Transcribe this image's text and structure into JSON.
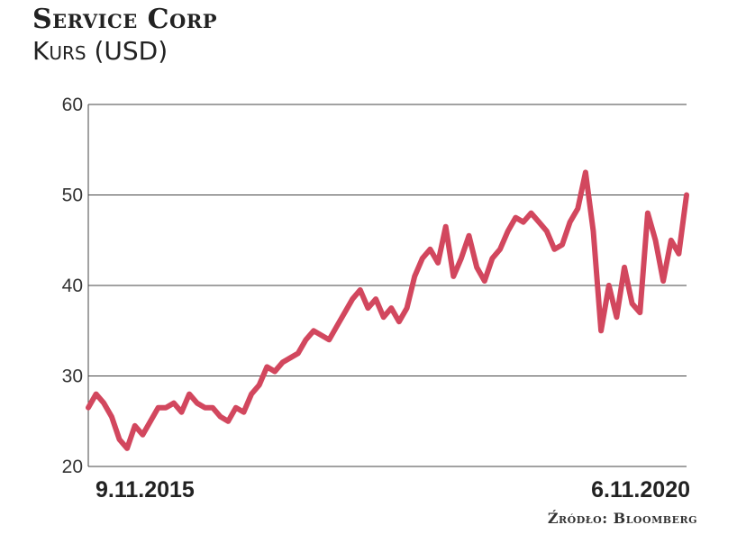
{
  "header": {
    "title": "Service Corp",
    "subtitle": "Kurs (USD)"
  },
  "footer": {
    "source": "Źródło: Bloomberg"
  },
  "chart_data": {
    "type": "line",
    "title": "Service Corp",
    "ylabel": "Kurs (USD)",
    "ylim": [
      20,
      60
    ],
    "yticks": [
      "20",
      "30",
      "40",
      "50",
      "60"
    ],
    "xtick_labels": [
      "9.11.2015",
      "6.11.2020"
    ],
    "grid": "horizontal",
    "line_color": "#d2475e",
    "series": [
      {
        "values": [
          26.5,
          28.0,
          27.0,
          25.5,
          23.0,
          22.0,
          24.5,
          23.5,
          25.0,
          26.5,
          26.5,
          27.0,
          26.0,
          28.0,
          27.0,
          26.5,
          26.5,
          25.5,
          25.0,
          26.5,
          26.0,
          28.0,
          29.0,
          31.0,
          30.5,
          31.5,
          32.0,
          32.5,
          34.0,
          35.0,
          34.5,
          34.0,
          35.5,
          37.0,
          38.5,
          39.5,
          37.5,
          38.5,
          36.5,
          37.5,
          36.0,
          37.5,
          41.0,
          43.0,
          44.0,
          42.5,
          46.5,
          41.0,
          43.0,
          45.5,
          42.0,
          40.5,
          43.0,
          44.0,
          46.0,
          47.5,
          47.0,
          48.0,
          47.0,
          46.0,
          44.0,
          44.5,
          47.0,
          48.5,
          52.5,
          46.0,
          35.0,
          40.0,
          36.5,
          42.0,
          38.0,
          37.0,
          48.0,
          45.0,
          40.5,
          45.0,
          43.5,
          50.0
        ]
      }
    ]
  }
}
